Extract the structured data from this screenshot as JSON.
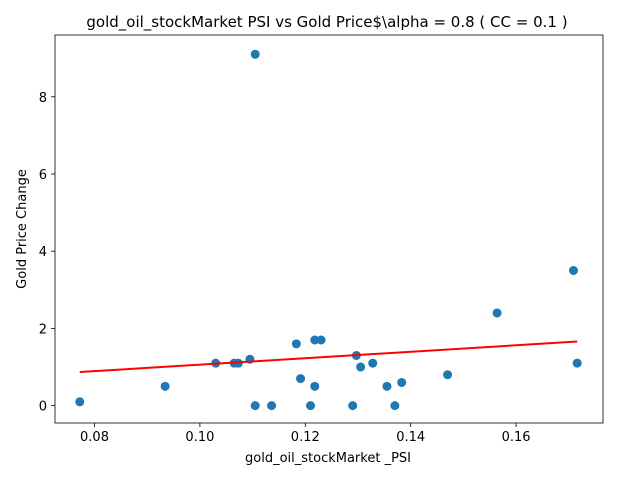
{
  "chart_data": {
    "type": "scatter",
    "title": "gold_oil_stockMarket  PSI vs Gold Price$\\alpha = 0.8 ( CC = 0.1 )",
    "xlabel": "gold_oil_stockMarket _PSI",
    "ylabel": "Gold Price Change",
    "xlim": [
      0.0725,
      0.1765
    ],
    "ylim": [
      -0.45,
      9.6
    ],
    "xticks": [
      0.08,
      0.1,
      0.12,
      0.14,
      0.16
    ],
    "xtick_labels": [
      "0.08",
      "0.10",
      "0.12",
      "0.14",
      "0.16"
    ],
    "yticks": [
      0,
      2,
      4,
      6,
      8
    ],
    "ytick_labels": [
      "0",
      "2",
      "4",
      "6",
      "8"
    ],
    "grid": false,
    "points": [
      {
        "x": 0.0772,
        "y": 0.1
      },
      {
        "x": 0.0934,
        "y": 0.5
      },
      {
        "x": 0.103,
        "y": 1.1
      },
      {
        "x": 0.1065,
        "y": 1.1
      },
      {
        "x": 0.1073,
        "y": 1.1
      },
      {
        "x": 0.1095,
        "y": 1.2
      },
      {
        "x": 0.1105,
        "y": 9.1
      },
      {
        "x": 0.1105,
        "y": 0.0
      },
      {
        "x": 0.1136,
        "y": 0.0
      },
      {
        "x": 0.1183,
        "y": 1.6
      },
      {
        "x": 0.1191,
        "y": 0.7
      },
      {
        "x": 0.121,
        "y": 0.0
      },
      {
        "x": 0.1218,
        "y": 1.7
      },
      {
        "x": 0.1218,
        "y": 0.5
      },
      {
        "x": 0.123,
        "y": 1.7
      },
      {
        "x": 0.129,
        "y": 0.0
      },
      {
        "x": 0.1297,
        "y": 1.3
      },
      {
        "x": 0.1305,
        "y": 1.0
      },
      {
        "x": 0.1328,
        "y": 1.1
      },
      {
        "x": 0.1355,
        "y": 0.5
      },
      {
        "x": 0.137,
        "y": 0.0
      },
      {
        "x": 0.1383,
        "y": 0.6
      },
      {
        "x": 0.147,
        "y": 0.8
      },
      {
        "x": 0.1564,
        "y": 2.4
      },
      {
        "x": 0.1709,
        "y": 3.5
      },
      {
        "x": 0.1716,
        "y": 1.1
      }
    ],
    "point_color": "#1f77b4",
    "fit_line": {
      "x": [
        0.0772,
        0.1716
      ],
      "y": [
        0.87,
        1.66
      ]
    },
    "fit_color": "#ff0000"
  }
}
